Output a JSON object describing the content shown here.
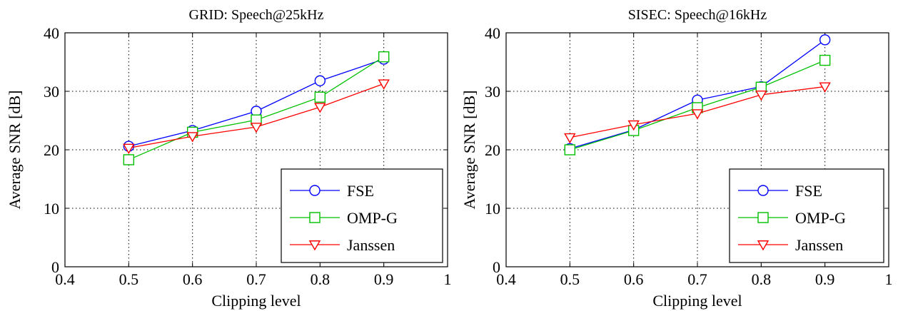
{
  "chart_data": [
    {
      "type": "line",
      "title": "GRID: Speech@25kHz",
      "xlabel": "Clipping level",
      "ylabel": "Average SNR [dB]",
      "xlim": [
        0.4,
        1
      ],
      "ylim": [
        0,
        40
      ],
      "xticks": [
        "0.4",
        "0.5",
        "0.6",
        "0.7",
        "0.8",
        "0.9",
        "1"
      ],
      "yticks": [
        "0",
        "10",
        "20",
        "30",
        "40"
      ],
      "grid": true,
      "legend_position": "bottom-right",
      "x": [
        0.5,
        0.6,
        0.7,
        0.8,
        0.9
      ],
      "series": [
        {
          "name": "FSE",
          "values": [
            20.6,
            23.3,
            26.6,
            31.8,
            35.5
          ],
          "color": "#0000ff",
          "marker": "circle"
        },
        {
          "name": "OMP-G",
          "values": [
            18.3,
            23.0,
            25.1,
            29.0,
            35.9
          ],
          "color": "#00c000",
          "marker": "square"
        },
        {
          "name": "Janssen",
          "values": [
            20.3,
            22.3,
            23.9,
            27.3,
            31.3
          ],
          "color": "#ff0000",
          "marker": "triangle-down"
        }
      ]
    },
    {
      "type": "line",
      "title": "SISEC: Speech@16kHz",
      "xlabel": "Clipping level",
      "ylabel": "Average SNR [dB]",
      "xlim": [
        0.4,
        1
      ],
      "ylim": [
        0,
        40
      ],
      "xticks": [
        "0.4",
        "0.5",
        "0.6",
        "0.7",
        "0.8",
        "0.9",
        "1"
      ],
      "yticks": [
        "0",
        "10",
        "20",
        "30",
        "40"
      ],
      "grid": true,
      "legend_position": "bottom-right",
      "x": [
        0.5,
        0.6,
        0.7,
        0.8,
        0.9
      ],
      "series": [
        {
          "name": "FSE",
          "values": [
            20.2,
            23.4,
            28.5,
            30.8,
            38.8
          ],
          "color": "#0000ff",
          "marker": "circle"
        },
        {
          "name": "OMP-G",
          "values": [
            20.0,
            23.3,
            27.2,
            30.7,
            35.3
          ],
          "color": "#00c000",
          "marker": "square"
        },
        {
          "name": "Janssen",
          "values": [
            22.1,
            24.3,
            26.2,
            29.4,
            30.8
          ],
          "color": "#ff0000",
          "marker": "triangle-down"
        }
      ]
    }
  ]
}
